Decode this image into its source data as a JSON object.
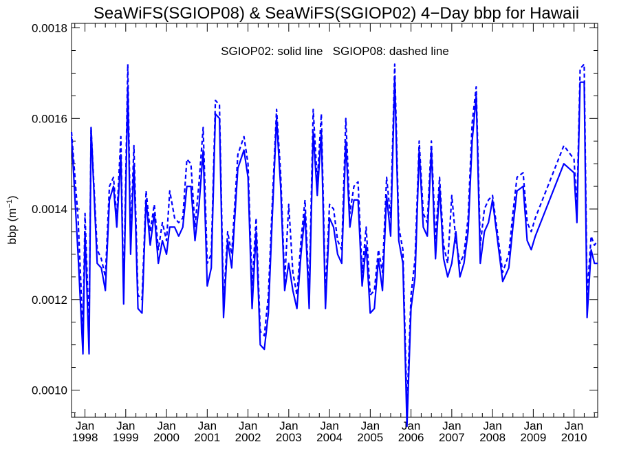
{
  "chart_data": {
    "type": "line",
    "title": "SeaWiFS(SGIOP08) & SeaWiFS(SGIOP02) 4−Day bbp for Hawaii",
    "ylabel_base": "bbp (m",
    "ylabel_sup": "−1",
    "ylabel_close": ")",
    "annotation": "SGIOP02: solid line   SGIOP08: dashed line",
    "ylim": [
      0.00094,
      0.00181
    ],
    "xlim": [
      1997.67,
      2010.58
    ],
    "y_ticks": [
      {
        "value": 0.001,
        "label": "0.0010"
      },
      {
        "value": 0.0012,
        "label": "0.0012"
      },
      {
        "value": 0.0014,
        "label": "0.0014"
      },
      {
        "value": 0.0016,
        "label": "0.0016"
      },
      {
        "value": 0.0018,
        "label": "0.0018"
      }
    ],
    "x_ticks": [
      {
        "value": 1998.0,
        "month": "Jan",
        "year": "1998"
      },
      {
        "value": 1999.0,
        "month": "Jan",
        "year": "1999"
      },
      {
        "value": 2000.0,
        "month": "Jan",
        "year": "2000"
      },
      {
        "value": 2001.0,
        "month": "Jan",
        "year": "2001"
      },
      {
        "value": 2002.0,
        "month": "Jan",
        "year": "2002"
      },
      {
        "value": 2003.0,
        "month": "Jan",
        "year": "2003"
      },
      {
        "value": 2004.0,
        "month": "Jan",
        "year": "2004"
      },
      {
        "value": 2005.0,
        "month": "Jan",
        "year": "2005"
      },
      {
        "value": 2006.0,
        "month": "Jan",
        "year": "2006"
      },
      {
        "value": 2007.0,
        "month": "Jan",
        "year": "2007"
      },
      {
        "value": 2008.0,
        "month": "Jan",
        "year": "2008"
      },
      {
        "value": 2009.0,
        "month": "Jan",
        "year": "2009"
      },
      {
        "value": 2010.0,
        "month": "Jan",
        "year": "2010"
      }
    ],
    "x": [
      1997.67,
      1997.83,
      1997.95,
      1998.0,
      1998.1,
      1998.15,
      1998.3,
      1998.4,
      1998.5,
      1998.6,
      1998.7,
      1998.78,
      1998.88,
      1998.95,
      1999.05,
      1999.12,
      1999.2,
      1999.3,
      1999.4,
      1999.5,
      1999.6,
      1999.7,
      1999.8,
      1999.9,
      2000.0,
      2000.08,
      2000.2,
      2000.3,
      2000.4,
      2000.5,
      2000.6,
      2000.7,
      2000.8,
      2000.9,
      2001.0,
      2001.1,
      2001.2,
      2001.3,
      2001.4,
      2001.5,
      2001.6,
      2001.75,
      2001.9,
      2002.0,
      2002.1,
      2002.2,
      2002.3,
      2002.4,
      2002.5,
      2002.6,
      2002.7,
      2002.8,
      2002.9,
      2003.0,
      2003.1,
      2003.2,
      2003.3,
      2003.4,
      2003.5,
      2003.6,
      2003.7,
      2003.8,
      2003.9,
      2004.0,
      2004.1,
      2004.2,
      2004.3,
      2004.4,
      2004.5,
      2004.6,
      2004.7,
      2004.8,
      2004.9,
      2005.0,
      2005.1,
      2005.2,
      2005.3,
      2005.4,
      2005.5,
      2005.6,
      2005.7,
      2005.8,
      2005.9,
      2006.0,
      2006.1,
      2006.2,
      2006.3,
      2006.4,
      2006.5,
      2006.6,
      2006.7,
      2006.8,
      2006.9,
      2007.0,
      2007.1,
      2007.2,
      2007.3,
      2007.4,
      2007.5,
      2007.6,
      2007.7,
      2007.8,
      2007.9,
      2008.0,
      2008.25,
      2008.4,
      2008.5,
      2008.6,
      2008.75,
      2008.85,
      2008.95,
      2009.05,
      2009.75,
      2010.0,
      2010.07,
      2010.15,
      2010.25,
      2010.32,
      2010.42,
      2010.5,
      2010.58
    ],
    "series": [
      {
        "name": "SGIOP02",
        "values": [
          0.00156,
          0.0013,
          0.00108,
          0.00135,
          0.00108,
          0.00158,
          0.00128,
          0.00127,
          0.00122,
          0.00142,
          0.00145,
          0.00136,
          0.00152,
          0.00119,
          0.00167,
          0.0013,
          0.0015,
          0.00118,
          0.00117,
          0.00142,
          0.00132,
          0.00139,
          0.00128,
          0.00133,
          0.0013,
          0.00136,
          0.00136,
          0.00134,
          0.00136,
          0.00145,
          0.00145,
          0.00133,
          0.00141,
          0.00153,
          0.00123,
          0.00127,
          0.00161,
          0.0016,
          0.00116,
          0.00133,
          0.00127,
          0.00149,
          0.00153,
          0.00147,
          0.00118,
          0.00135,
          0.0011,
          0.00109,
          0.00117,
          0.00139,
          0.0016,
          0.00145,
          0.00122,
          0.00128,
          0.00122,
          0.00118,
          0.0013,
          0.00139,
          0.00118,
          0.00157,
          0.00143,
          0.00157,
          0.00118,
          0.00138,
          0.00136,
          0.0013,
          0.00128,
          0.00155,
          0.00136,
          0.00142,
          0.00142,
          0.00123,
          0.00132,
          0.00117,
          0.00118,
          0.00129,
          0.00122,
          0.00143,
          0.00134,
          0.00169,
          0.00133,
          0.00128,
          0.00092,
          0.00118,
          0.00125,
          0.00153,
          0.00136,
          0.00134,
          0.00153,
          0.00129,
          0.00145,
          0.00129,
          0.00125,
          0.00128,
          0.00135,
          0.00125,
          0.00128,
          0.00135,
          0.00155,
          0.00165,
          0.00128,
          0.00135,
          0.00137,
          0.00142,
          0.00124,
          0.00127,
          0.00136,
          0.00144,
          0.00145,
          0.00133,
          0.00131,
          0.00134,
          0.0015,
          0.00148,
          0.00137,
          0.00168,
          0.00168,
          0.00116,
          0.00131,
          0.00128,
          0.00128
        ]
      },
      {
        "name": "SGIOP08",
        "values": [
          0.00157,
          0.00138,
          0.00113,
          0.00139,
          0.00113,
          0.00158,
          0.00131,
          0.00129,
          0.00125,
          0.00145,
          0.00147,
          0.00138,
          0.00156,
          0.00121,
          0.00172,
          0.00133,
          0.00154,
          0.00121,
          0.0012,
          0.00144,
          0.00135,
          0.00141,
          0.00131,
          0.00137,
          0.00133,
          0.00144,
          0.00138,
          0.00137,
          0.00138,
          0.00151,
          0.0015,
          0.00136,
          0.00146,
          0.00158,
          0.00128,
          0.0013,
          0.00164,
          0.00163,
          0.00119,
          0.00135,
          0.0013,
          0.00152,
          0.00156,
          0.0015,
          0.00123,
          0.00138,
          0.00113,
          0.00112,
          0.00121,
          0.00142,
          0.00162,
          0.00148,
          0.00124,
          0.00141,
          0.00126,
          0.00121,
          0.00133,
          0.00142,
          0.00121,
          0.00162,
          0.00146,
          0.00161,
          0.00121,
          0.00141,
          0.0014,
          0.00133,
          0.00131,
          0.0016,
          0.00139,
          0.00145,
          0.00146,
          0.00126,
          0.00136,
          0.00121,
          0.00122,
          0.00131,
          0.00126,
          0.00147,
          0.00138,
          0.00172,
          0.00136,
          0.00131,
          0.00096,
          0.00121,
          0.00129,
          0.00155,
          0.00139,
          0.00137,
          0.00155,
          0.00133,
          0.00147,
          0.00132,
          0.00128,
          0.00143,
          0.00133,
          0.00128,
          0.0013,
          0.00138,
          0.00159,
          0.00167,
          0.00132,
          0.0014,
          0.00142,
          0.00143,
          0.00126,
          0.0013,
          0.00139,
          0.00147,
          0.00148,
          0.00137,
          0.00135,
          0.00138,
          0.00154,
          0.00151,
          0.0014,
          0.00171,
          0.00172,
          0.00121,
          0.00134,
          0.00132,
          0.00133
        ]
      }
    ],
    "colors": {
      "line": "#0000ff",
      "axis": "#000000"
    },
    "grid": false,
    "legend": "none"
  }
}
